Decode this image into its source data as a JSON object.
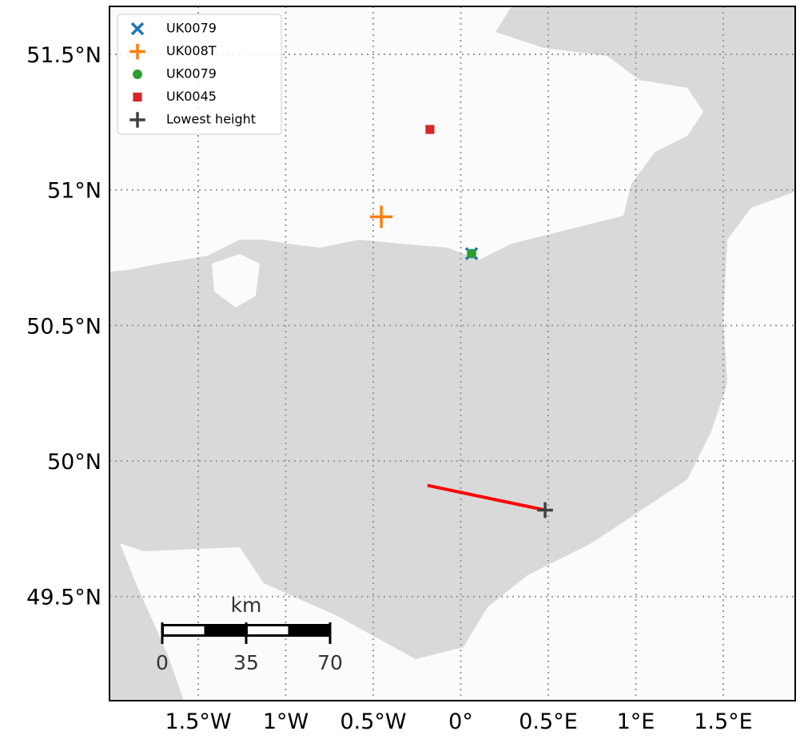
{
  "map": {
    "xlim": [
      -2.007,
      1.911
    ],
    "ylim": [
      49.116,
      51.677
    ],
    "xticks": [
      {
        "value": -1.5,
        "label": "1.5°W"
      },
      {
        "value": -1,
        "label": "1°W"
      },
      {
        "value": -0.5,
        "label": "0.5°W"
      },
      {
        "value": 0,
        "label": "0°"
      },
      {
        "value": 0.5,
        "label": "0.5°E"
      },
      {
        "value": 1,
        "label": "1°E"
      },
      {
        "value": 1.5,
        "label": "1.5°E"
      }
    ],
    "yticks": [
      {
        "value": 49.5,
        "label": "49.5°N"
      },
      {
        "value": 50,
        "label": "50°N"
      },
      {
        "value": 50.5,
        "label": "50.5°N"
      },
      {
        "value": 51,
        "label": "51°N"
      },
      {
        "value": 51.5,
        "label": "51.5°N"
      }
    ],
    "grid": true,
    "series": [
      {
        "name": "UK0079",
        "color": "#1f77b4",
        "marker": "x",
        "lon": [
          0.062
        ],
        "lat": [
          50.765
        ]
      },
      {
        "name": "UK008T",
        "color": "#ff7f0e",
        "marker": "+",
        "lon": [
          -0.454
        ],
        "lat": [
          50.901
        ]
      },
      {
        "name": "UK0079",
        "color": "#2ca02c",
        "marker": "o",
        "lon": [
          0.062
        ],
        "lat": [
          50.765
        ]
      },
      {
        "name": "UK0045",
        "color": "#d62728",
        "marker": "s",
        "lon": [
          -0.176
        ],
        "lat": [
          51.223
        ]
      },
      {
        "name": "Lowest height",
        "color": "#404040",
        "marker": "+",
        "lon": [
          0.482
        ],
        "lat": [
          49.819
        ]
      }
    ],
    "track": {
      "color": "#ff0000",
      "lon": [
        -0.19,
        0.482
      ],
      "lat": [
        49.91,
        49.819
      ]
    },
    "scale_bar": {
      "label": "km",
      "ticks": [
        0,
        35,
        70
      ]
    }
  }
}
